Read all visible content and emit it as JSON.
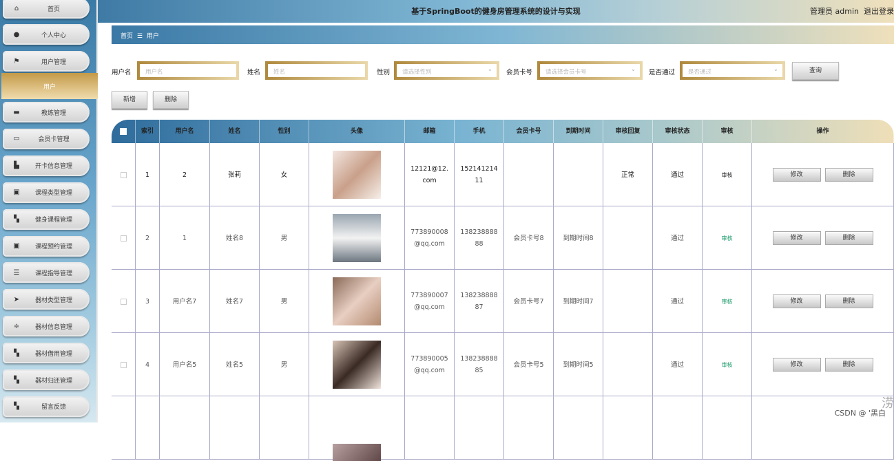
{
  "header": {
    "title": "基于SpringBoot的健身房管理系统的设计与实现",
    "user": "管理员 admin",
    "logout": "退出登录"
  },
  "sidebar": {
    "items": [
      {
        "label": "首页",
        "icon": "home-icon",
        "glyph": "⌂"
      },
      {
        "label": "个人中心",
        "icon": "user-icon",
        "glyph": "●"
      },
      {
        "label": "用户管理",
        "icon": "flag-icon",
        "glyph": "⚑"
      },
      {
        "label": "用户",
        "icon": "",
        "glyph": "",
        "active": true
      },
      {
        "label": "教练管理",
        "icon": "monitor-icon",
        "glyph": "▬"
      },
      {
        "label": "会员卡管理",
        "icon": "card-icon",
        "glyph": "▭"
      },
      {
        "label": "开卡信息管理",
        "icon": "thumb-icon",
        "glyph": "▙"
      },
      {
        "label": "课程类型管理",
        "icon": "clipboard-check-icon",
        "glyph": "▣"
      },
      {
        "label": "健身课程管理",
        "icon": "grid-icon",
        "glyph": "▚"
      },
      {
        "label": "课程预约管理",
        "icon": "clipboard-x-icon",
        "glyph": "▣"
      },
      {
        "label": "课程指导管理",
        "icon": "list-icon",
        "glyph": "☰"
      },
      {
        "label": "器材类型管理",
        "icon": "send-icon",
        "glyph": "➤"
      },
      {
        "label": "器材信息管理",
        "icon": "sliders-icon",
        "glyph": "≑"
      },
      {
        "label": "器材借用管理",
        "icon": "grid-icon",
        "glyph": "▚"
      },
      {
        "label": "器材归还管理",
        "icon": "grid-icon",
        "glyph": "▚"
      },
      {
        "label": "留言反馈",
        "icon": "grid-icon",
        "glyph": "▚"
      }
    ]
  },
  "breadcrumb": {
    "home": "首页",
    "sep": "☰",
    "current": "用户"
  },
  "filters": {
    "username": {
      "label": "用户名",
      "placeholder": "用户名"
    },
    "name": {
      "label": "姓名",
      "placeholder": "姓名"
    },
    "gender": {
      "label": "性别",
      "placeholder": "请选择性别"
    },
    "card": {
      "label": "会员卡号",
      "placeholder": "请选择会员卡号"
    },
    "passed": {
      "label": "是否通过",
      "placeholder": "是否通过"
    },
    "search": "查询"
  },
  "actions": {
    "add": "新增",
    "delete": "删除"
  },
  "table": {
    "columns": [
      "索引",
      "用户名",
      "姓名",
      "性别",
      "头像",
      "邮箱",
      "手机",
      "会员卡号",
      "到期时间",
      "审核回复",
      "审核状态",
      "审核",
      "操作"
    ],
    "edit": "修改",
    "delete": "删除",
    "rows": [
      {
        "index": "1",
        "username": "2",
        "name": "张莉",
        "gender": "女",
        "email": "12121@12.com",
        "phone": "15214121411",
        "card": "",
        "expire": "",
        "reply": "正常",
        "status": "通过",
        "audit": "审核"
      },
      {
        "index": "2",
        "username": "1",
        "name": "姓名8",
        "gender": "男",
        "email": "773890008@qq.com",
        "phone": "13823888888",
        "card": "会员卡号8",
        "expire": "到期时间8",
        "reply": "",
        "status": "通过",
        "audit": "审核"
      },
      {
        "index": "3",
        "username": "用户名7",
        "name": "姓名7",
        "gender": "男",
        "email": "773890007@qq.com",
        "phone": "13823888887",
        "card": "会员卡号7",
        "expire": "到期时间7",
        "reply": "",
        "status": "通过",
        "audit": "审核"
      },
      {
        "index": "4",
        "username": "用户名5",
        "name": "姓名5",
        "gender": "男",
        "email": "773890005@qq.com",
        "phone": "13823888885",
        "card": "会员卡号5",
        "expire": "到期时间5",
        "reply": "",
        "status": "通过",
        "audit": "审核"
      }
    ]
  },
  "watermark": "CSDN @ '黑白"
}
